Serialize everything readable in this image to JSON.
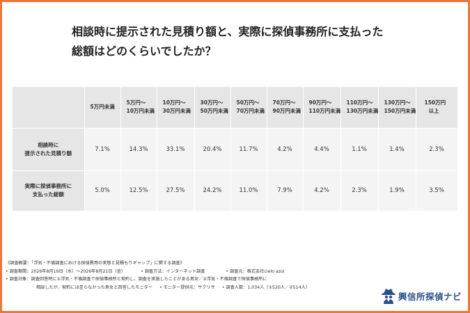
{
  "title": {
    "line1": "相談時に提示された見積り額と、実際に探偵事務所に支払った",
    "line2": "総額はどのくらいでしたか？"
  },
  "table": {
    "columns": [
      [
        "5万円未満"
      ],
      [
        "5万円〜",
        "10万円未満"
      ],
      [
        "10万円〜",
        "30万円未満"
      ],
      [
        "30万円〜",
        "50万円未満"
      ],
      [
        "50万円〜",
        "70万円未満"
      ],
      [
        "70万円〜",
        "90万円未満"
      ],
      [
        "90万円〜",
        "110万円未満"
      ],
      [
        "110万円〜",
        "130万円未満"
      ],
      [
        "130万円〜",
        "150万円未満"
      ],
      [
        "150万円",
        "以上"
      ]
    ],
    "rows": [
      {
        "label": [
          "相談時に",
          "提示された見積り額"
        ],
        "values": [
          "7.1%",
          "14.3%",
          "33.1%",
          "20.4%",
          "11.7%",
          "4.2%",
          "4.4%",
          "1.1%",
          "1.4%",
          "2.3%"
        ]
      },
      {
        "label": [
          "実際に探偵事務所に",
          "支払った総額"
        ],
        "values": [
          "5.0%",
          "12.5%",
          "27.5%",
          "24.2%",
          "11.0%",
          "7.9%",
          "4.2%",
          "2.3%",
          "1.9%",
          "3.5%"
        ]
      }
    ]
  },
  "survey": {
    "heading": "《調査概要：「浮気・不倫調査における探偵費用の実態と見積もりギャップ」に関する調査》",
    "period": "• 調査期間：2026年8月19日（水）〜2026年8月21日（金）",
    "method": "• 調査方法：インターネット調査",
    "source": "• 調査元：株式会社cielo azul",
    "target1": "• 調査対象：調査回答時に①浮気・不倫調査で探偵事務所と契約し、調査を実施したことがある男女／②浮気・不倫調査で探偵事務所に",
    "target2": "相談したが、契約には至らなかった男女と回答したモニター",
    "provider": "• モニター提供元：サクリサ",
    "count": "• 調査人数：1,034人（①520人／②514人）"
  },
  "brand": {
    "name": "興信所探偵ナビ",
    "icon": "detective-icon",
    "color": "#2b4f8c"
  },
  "colors": {
    "border": "#e8793a",
    "header_bg": "#e6e6e6",
    "cell_bg": "#f4f4f4"
  }
}
